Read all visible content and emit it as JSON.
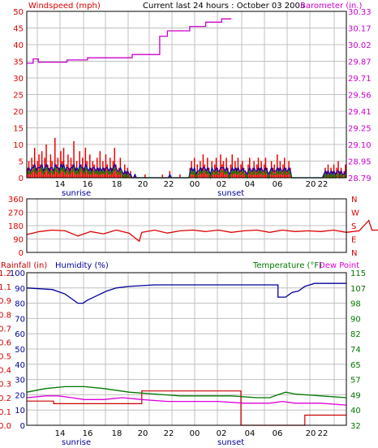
{
  "colors": {
    "wind": "#dd0000",
    "gust": "#ee0000",
    "avg_wind": "#0000aa",
    "wind_green": "#008800",
    "barometer": "#cc00cc",
    "direction": "#dd0000",
    "humidity": "#000099",
    "rainfall": "#cc0000",
    "temperature": "#007700",
    "dewpoint": "#dd00dd",
    "frame": "#000000",
    "grid": "#c0c0c0"
  },
  "header": {
    "title": "Current last 24 hours : October 03 2005"
  },
  "x_axis": {
    "hours": [
      "14",
      "16",
      "18",
      "20",
      "22",
      "00",
      "02",
      "04",
      "06",
      "20",
      "22"
    ],
    "sunrise_label": "sunrise",
    "sunset_label": "sunset"
  },
  "chart_data": [
    {
      "type": "line",
      "title": "Current last 24 hours : October 03 2005",
      "left_axis": {
        "label": "Windspeed (mph)",
        "ticks": [
          "50",
          "45",
          "40",
          "35",
          "30",
          "25",
          "20",
          "15",
          "10",
          "5",
          "0"
        ],
        "ylim": [
          0,
          50
        ]
      },
      "right_axis": {
        "label": "Barometer (in.)",
        "ticks": [
          "30.33",
          "30.17",
          "30.02",
          "29.87",
          "29.71",
          "29.56",
          "29.41",
          "29.25",
          "29.10",
          "28.95",
          "28.79"
        ],
        "ylim": [
          28.79,
          30.33
        ]
      },
      "x": [
        "14",
        "16",
        "18",
        "20",
        "22",
        "00",
        "02",
        "04",
        "06",
        "20",
        "22"
      ],
      "series": [
        {
          "name": "Barometer (in.)",
          "values": [
            [
              0,
              29.85
            ],
            [
              1,
              29.85
            ],
            [
              1,
              29.89
            ],
            [
              1.8,
              29.89
            ],
            [
              1.8,
              29.86
            ],
            [
              6.3,
              29.86
            ],
            [
              6.3,
              29.88
            ],
            [
              9.5,
              29.88
            ],
            [
              9.5,
              29.9
            ],
            [
              16.5,
              29.9
            ],
            [
              16.5,
              29.93
            ],
            [
              20.8,
              29.93
            ],
            [
              20.8,
              30.1
            ],
            [
              22,
              30.1
            ],
            [
              22,
              30.15
            ],
            [
              25.5,
              30.15
            ],
            [
              25.5,
              30.19
            ],
            [
              28,
              30.19
            ],
            [
              28,
              30.23
            ],
            [
              30.5,
              30.23
            ],
            [
              30.5,
              30.26
            ],
            [
              32,
              30.26
            ]
          ]
        }
      ],
      "wind_gust_mph": [
        3,
        5,
        2,
        6,
        4,
        9,
        3,
        5,
        7,
        4,
        8,
        2,
        6,
        10,
        4,
        3,
        7,
        5,
        2,
        12,
        4,
        6,
        3,
        8,
        5,
        9,
        2,
        4,
        7,
        3,
        6,
        4,
        11,
        3,
        5,
        2,
        8,
        4,
        6,
        3,
        9,
        5,
        2,
        7,
        3,
        5,
        4,
        2,
        6,
        3,
        8,
        2,
        5,
        3,
        7,
        4,
        2,
        6,
        3,
        5,
        9,
        4,
        2,
        3,
        6,
        2,
        1,
        4,
        2,
        3,
        1,
        2,
        0,
        0,
        1,
        0,
        0,
        0,
        0,
        0,
        0,
        1,
        0,
        0,
        0,
        0,
        0,
        0,
        0,
        0,
        0,
        0,
        0,
        1,
        0,
        0,
        0,
        0,
        2,
        0,
        0,
        0,
        0,
        0,
        0,
        1,
        0,
        0,
        0,
        0,
        0,
        0,
        3,
        5,
        2,
        6,
        1,
        4,
        2,
        5,
        3,
        7,
        4,
        2,
        6,
        3,
        1,
        5,
        2,
        4,
        6,
        3,
        2,
        7,
        4,
        5,
        2,
        6,
        3,
        1,
        4,
        7,
        2,
        5,
        3,
        6,
        2,
        4,
        5,
        3,
        2,
        1,
        4,
        6,
        2,
        3,
        5,
        2,
        4,
        6,
        3,
        5,
        2,
        4,
        6,
        3,
        1,
        2,
        5,
        3,
        4,
        2,
        7,
        3,
        5,
        2,
        4,
        6,
        3,
        2,
        5,
        3,
        0,
        0,
        0,
        0,
        0,
        0,
        0,
        0,
        0,
        0,
        0,
        0,
        0,
        0,
        0,
        0,
        0,
        0,
        0,
        0,
        0,
        0,
        1,
        3,
        2,
        4,
        1,
        3,
        2,
        4,
        1,
        3,
        5,
        2,
        3,
        1,
        2,
        4
      ],
      "avg_wind_mph": [
        2,
        3,
        2,
        3,
        3,
        4,
        2,
        3,
        3,
        3,
        4,
        2,
        3,
        4,
        3,
        2,
        3,
        3,
        2,
        4,
        3,
        3,
        2,
        4,
        3,
        4,
        2,
        3,
        3,
        2,
        3,
        3,
        4,
        2,
        3,
        2,
        4,
        3,
        3,
        2,
        4,
        3,
        2,
        3,
        2,
        3,
        3,
        2,
        3,
        2,
        3,
        2,
        3,
        2,
        3,
        3,
        2,
        3,
        2,
        3,
        4,
        3,
        2,
        2,
        3,
        2,
        1,
        2,
        1,
        2,
        1,
        1,
        0,
        0,
        1,
        0,
        0,
        0,
        0,
        0,
        0,
        0,
        0,
        0,
        0,
        0,
        0,
        0,
        0,
        0,
        0,
        0,
        0,
        0,
        0,
        0,
        0,
        0,
        1,
        0,
        0,
        0,
        0,
        0,
        0,
        0,
        0,
        0,
        0,
        0,
        0,
        0,
        2,
        3,
        2,
        3,
        1,
        2,
        2,
        3,
        2,
        3,
        3,
        2,
        3,
        2,
        1,
        3,
        2,
        2,
        3,
        2,
        2,
        3,
        3,
        3,
        2,
        3,
        2,
        1,
        2,
        3,
        2,
        3,
        2,
        3,
        2,
        2,
        3,
        2,
        2,
        1,
        2,
        3,
        2,
        2,
        3,
        2,
        2,
        3,
        2,
        3,
        2,
        2,
        3,
        2,
        1,
        2,
        3,
        2,
        2,
        2,
        3,
        2,
        3,
        2,
        2,
        3,
        2,
        2,
        3,
        2,
        0,
        0,
        0,
        0,
        0,
        0,
        0,
        0,
        0,
        0,
        0,
        0,
        0,
        0,
        0,
        0,
        0,
        0,
        0,
        0,
        0,
        0,
        1,
        2,
        1,
        2,
        1,
        2,
        1,
        2,
        1,
        2,
        2,
        1,
        2,
        1,
        1,
        2
      ]
    },
    {
      "type": "line",
      "left_axis": {
        "ticks": [
          "360",
          "270",
          "180",
          "90",
          "0"
        ],
        "ylim": [
          0,
          360
        ]
      },
      "right_axis": {
        "ticks": [
          "N",
          "W",
          "S",
          "E",
          "N"
        ]
      },
      "x": [
        "14",
        "16",
        "18",
        "20",
        "22",
        "00",
        "02",
        "04",
        "06",
        "20",
        "22"
      ],
      "series": [
        {
          "name": "Wind direction",
          "values": [
            [
              0,
              120
            ],
            [
              2,
              140
            ],
            [
              4,
              150
            ],
            [
              6,
              145
            ],
            [
              8,
              110
            ],
            [
              10,
              140
            ],
            [
              12,
              125
            ],
            [
              14,
              150
            ],
            [
              16,
              130
            ],
            [
              17.6,
              75
            ],
            [
              18,
              135
            ],
            [
              20,
              150
            ],
            [
              22,
              130
            ],
            [
              24,
              145
            ],
            [
              26,
              150
            ],
            [
              28,
              140
            ],
            [
              30,
              150
            ],
            [
              32,
              135
            ],
            [
              34,
              145
            ],
            [
              36,
              150
            ],
            [
              38,
              135
            ],
            [
              40,
              150
            ],
            [
              42,
              140
            ],
            [
              44,
              145
            ],
            [
              46,
              140
            ],
            [
              48,
              150
            ],
            [
              50,
              135
            ],
            [
              52,
              145
            ],
            [
              53.5,
              215
            ],
            [
              54,
              150
            ],
            [
              56,
              150
            ],
            [
              58,
              150
            ],
            [
              60,
              150
            ],
            [
              62,
              150
            ],
            [
              64,
              150
            ],
            [
              66,
              150
            ],
            [
              68,
              150
            ],
            [
              70,
              150
            ],
            [
              72,
              150
            ],
            [
              74,
              150
            ],
            [
              75,
              110
            ],
            [
              76,
              140
            ],
            [
              78,
              110
            ],
            [
              79,
              200
            ],
            [
              80,
              115
            ],
            [
              81,
              90
            ],
            [
              82,
              150
            ],
            [
              83,
              120
            ]
          ]
        }
      ]
    },
    {
      "type": "line",
      "left_axis": {
        "labels": [
          "Rainfall (in)",
          "Humidity (%)"
        ],
        "rain_ticks": [
          "1.2",
          "1.1",
          "0.9",
          "0.8",
          "0.7",
          "0.6",
          "0.5",
          "0.4",
          "0.3",
          "0.2",
          "0.1",
          "0.0"
        ],
        "humidity_ticks": [
          "100",
          "90",
          "80",
          "70",
          "60",
          "50",
          "40",
          "30",
          "20",
          "10",
          "0"
        ],
        "ylim": [
          0,
          100
        ]
      },
      "right_axis": {
        "labels": [
          "Temperature (°F)",
          "Dew Point"
        ],
        "ticks": [
          "115",
          "107",
          "98",
          "90",
          "82",
          "74",
          "65",
          "57",
          "49",
          "40",
          "32"
        ],
        "ylim": [
          32,
          115
        ]
      },
      "x": [
        "14",
        "16",
        "18",
        "20",
        "22",
        "00",
        "02",
        "04",
        "06",
        "20",
        "22"
      ],
      "series": [
        {
          "name": "Humidity (%)",
          "values": [
            [
              0,
              90
            ],
            [
              4,
              89
            ],
            [
              6,
              86
            ],
            [
              7,
              83
            ],
            [
              8,
              80
            ],
            [
              8.8,
              80
            ],
            [
              9.5,
              82
            ],
            [
              11,
              85
            ],
            [
              12.5,
              88
            ],
            [
              14,
              90
            ],
            [
              16,
              91
            ],
            [
              20,
              92
            ],
            [
              34,
              92
            ],
            [
              39.3,
              92
            ],
            [
              39.3,
              84
            ],
            [
              40.5,
              84
            ],
            [
              41.5,
              87
            ],
            [
              42.5,
              88
            ],
            [
              43.5,
              91
            ],
            [
              45,
              93
            ],
            [
              50,
              93
            ]
          ]
        },
        {
          "name": "Rainfall (in)",
          "values": [
            [
              0,
              0.19
            ],
            [
              4.2,
              0.19
            ],
            [
              4.2,
              0.17
            ],
            [
              18,
              0.17
            ],
            [
              18,
              0.27
            ],
            [
              33.5,
              0.27
            ],
            [
              33.5,
              0
            ],
            [
              43.5,
              0
            ],
            [
              43.5,
              0.08
            ],
            [
              50,
              0.08
            ]
          ]
        },
        {
          "name": "Temperature (°F)",
          "values": [
            [
              0,
              50
            ],
            [
              3,
              52
            ],
            [
              6,
              53
            ],
            [
              9,
              53
            ],
            [
              12,
              52
            ],
            [
              16,
              50
            ],
            [
              20,
              49
            ],
            [
              24,
              48
            ],
            [
              28,
              48
            ],
            [
              32,
              48
            ],
            [
              36,
              47
            ],
            [
              38,
              47
            ],
            [
              40.5,
              50
            ],
            [
              42,
              49
            ],
            [
              46,
              48
            ],
            [
              50,
              47
            ]
          ]
        },
        {
          "name": "Dew Point",
          "values": [
            [
              0,
              47
            ],
            [
              3,
              48
            ],
            [
              5,
              48
            ],
            [
              7,
              47
            ],
            [
              9,
              46
            ],
            [
              12,
              46
            ],
            [
              15,
              47
            ],
            [
              18,
              46
            ],
            [
              22,
              45
            ],
            [
              26,
              45
            ],
            [
              30,
              45
            ],
            [
              34,
              44
            ],
            [
              38,
              44
            ],
            [
              40,
              45
            ],
            [
              42,
              44
            ],
            [
              46,
              44
            ],
            [
              50,
              43
            ]
          ]
        }
      ]
    }
  ]
}
